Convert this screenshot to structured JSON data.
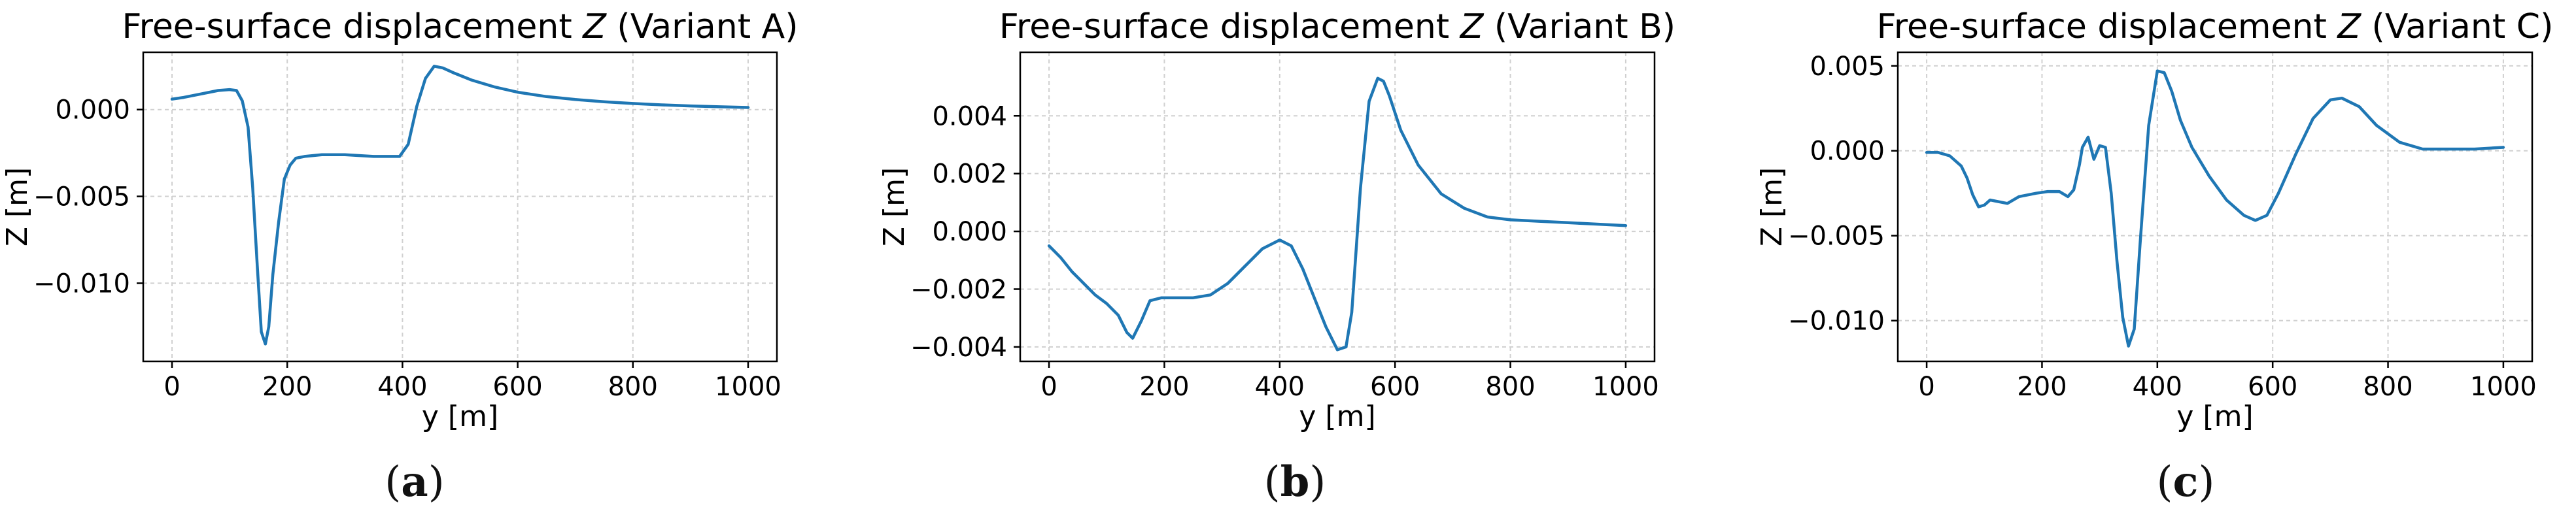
{
  "figure": {
    "panels": [
      {
        "caption_prefix": "(",
        "caption_letter": "a",
        "caption_suffix": ")"
      },
      {
        "caption_prefix": "(",
        "caption_letter": "b",
        "caption_suffix": ")"
      },
      {
        "caption_prefix": "(",
        "caption_letter": "c",
        "caption_suffix": ")"
      }
    ]
  },
  "chart_data": [
    {
      "type": "line",
      "title_prefix": "Free-surface displacement ",
      "title_var": "Z",
      "title_suffix": " (Variant A)",
      "xlabel": "y [m]",
      "ylabel": "Z [m]",
      "xlim": [
        -50,
        1050
      ],
      "ylim": [
        -0.0145,
        0.0033
      ],
      "xticks": [
        0,
        200,
        400,
        600,
        800,
        1000
      ],
      "xtick_labels": [
        "0",
        "200",
        "400",
        "600",
        "800",
        "1000"
      ],
      "yticks": [
        0.0,
        -0.005,
        -0.01
      ],
      "ytick_labels": [
        "0.000",
        "−0.005",
        "−0.010"
      ],
      "grid": true,
      "color": "#1f77b4",
      "x": [
        0,
        20,
        50,
        80,
        100,
        112,
        122,
        132,
        140,
        148,
        155,
        162,
        168,
        175,
        185,
        195,
        205,
        215,
        230,
        260,
        300,
        350,
        395,
        410,
        425,
        440,
        455,
        470,
        490,
        520,
        560,
        600,
        650,
        700,
        750,
        800,
        850,
        900,
        950,
        1000
      ],
      "y": [
        0.0006,
        0.0007,
        0.0009,
        0.0011,
        0.00115,
        0.0011,
        0.0005,
        -0.001,
        -0.0045,
        -0.009,
        -0.0128,
        -0.0135,
        -0.0125,
        -0.0095,
        -0.0065,
        -0.004,
        -0.0032,
        -0.0028,
        -0.0027,
        -0.0026,
        -0.0026,
        -0.0027,
        -0.0027,
        -0.002,
        0.0002,
        0.0018,
        0.0025,
        0.0024,
        0.0021,
        0.0017,
        0.0013,
        0.001,
        0.00075,
        0.00058,
        0.00045,
        0.00035,
        0.00027,
        0.00021,
        0.00016,
        0.00012
      ]
    },
    {
      "type": "line",
      "title_prefix": "Free-surface displacement ",
      "title_var": "Z",
      "title_suffix": " (Variant B)",
      "xlabel": "y [m]",
      "ylabel": "Z [m]",
      "xlim": [
        -50,
        1050
      ],
      "ylim": [
        -0.0045,
        0.0062
      ],
      "xticks": [
        0,
        200,
        400,
        600,
        800,
        1000
      ],
      "xtick_labels": [
        "0",
        "200",
        "400",
        "600",
        "800",
        "1000"
      ],
      "yticks": [
        0.004,
        0.002,
        0.0,
        -0.002,
        -0.004
      ],
      "ytick_labels": [
        "0.004",
        "0.002",
        "0.000",
        "−0.002",
        "−0.004"
      ],
      "grid": true,
      "color": "#1f77b4",
      "x": [
        0,
        20,
        40,
        60,
        80,
        100,
        120,
        135,
        145,
        160,
        175,
        195,
        220,
        250,
        280,
        310,
        340,
        370,
        400,
        420,
        440,
        460,
        480,
        500,
        515,
        525,
        540,
        555,
        570,
        580,
        590,
        610,
        640,
        680,
        720,
        760,
        800,
        850,
        900,
        950,
        1000
      ],
      "y": [
        -0.0005,
        -0.0009,
        -0.0014,
        -0.0018,
        -0.0022,
        -0.0025,
        -0.0029,
        -0.0035,
        -0.0037,
        -0.0031,
        -0.0024,
        -0.0023,
        -0.0023,
        -0.0023,
        -0.0022,
        -0.0018,
        -0.0012,
        -0.0006,
        -0.0003,
        -0.0005,
        -0.0013,
        -0.0023,
        -0.0033,
        -0.0041,
        -0.004,
        -0.0028,
        0.0015,
        0.0045,
        0.0053,
        0.0052,
        0.0047,
        0.0035,
        0.0023,
        0.0013,
        0.0008,
        0.0005,
        0.0004,
        0.00035,
        0.0003,
        0.00025,
        0.0002
      ]
    },
    {
      "type": "line",
      "title_prefix": "Free-surface displacement ",
      "title_var": "Z",
      "title_suffix": " (Variant C)",
      "xlabel": "y [m]",
      "ylabel": "Z [m]",
      "xlim": [
        -50,
        1050
      ],
      "ylim": [
        -0.0124,
        0.0058
      ],
      "xticks": [
        0,
        200,
        400,
        600,
        800,
        1000
      ],
      "xtick_labels": [
        "0",
        "200",
        "400",
        "600",
        "800",
        "1000"
      ],
      "yticks": [
        0.005,
        0.0,
        -0.005,
        -0.01
      ],
      "ytick_labels": [
        "0.005",
        "0.000",
        "−0.005",
        "−0.010"
      ],
      "grid": true,
      "color": "#1f77b4",
      "x": [
        0,
        20,
        40,
        60,
        70,
        80,
        90,
        100,
        110,
        125,
        140,
        160,
        190,
        210,
        230,
        245,
        255,
        265,
        270,
        280,
        290,
        300,
        310,
        320,
        330,
        340,
        350,
        360,
        370,
        385,
        400,
        412,
        425,
        440,
        460,
        490,
        520,
        550,
        570,
        590,
        610,
        640,
        670,
        700,
        720,
        750,
        780,
        820,
        860,
        900,
        950,
        1000
      ],
      "y": [
        -0.0001,
        -0.0001,
        -0.0003,
        -0.0009,
        -0.0016,
        -0.0026,
        -0.0033,
        -0.0032,
        -0.0029,
        -0.003,
        -0.0031,
        -0.0027,
        -0.0025,
        -0.0024,
        -0.0024,
        -0.0027,
        -0.0023,
        -0.0008,
        0.0002,
        0.0008,
        -0.0005,
        0.0003,
        0.0002,
        -0.0025,
        -0.0065,
        -0.0098,
        -0.0115,
        -0.0105,
        -0.0055,
        0.0015,
        0.0047,
        0.0046,
        0.0035,
        0.0018,
        0.0002,
        -0.0015,
        -0.0029,
        -0.0038,
        -0.0041,
        -0.0038,
        -0.0025,
        -0.0002,
        0.0019,
        0.003,
        0.0031,
        0.0026,
        0.0015,
        0.0005,
        0.0001,
        0.0001,
        0.0001,
        0.0002
      ]
    }
  ]
}
